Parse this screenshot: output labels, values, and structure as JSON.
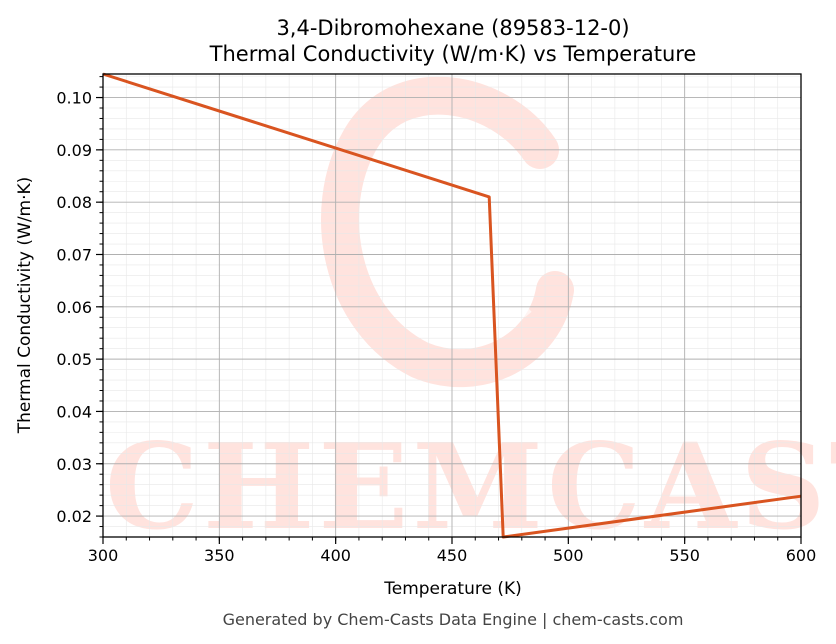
{
  "chart_data": {
    "type": "line",
    "title": "3,4-Dibromohexane (89583-12-0)",
    "subtitle": "Thermal Conductivity (W/m·K) vs Temperature",
    "xlabel": "Temperature (K)",
    "ylabel": "Thermal Conductivity (W/m·K)",
    "xlim": [
      300,
      600
    ],
    "ylim": [
      0.016,
      0.1045
    ],
    "x_ticks": [
      300,
      350,
      400,
      450,
      500,
      550,
      600
    ],
    "y_ticks": [
      0.02,
      0.03,
      0.04,
      0.05,
      0.06,
      0.07,
      0.08,
      0.09,
      0.1
    ],
    "grid": true,
    "series": [
      {
        "color": "#d95420",
        "x": [
          300,
          466,
          472,
          600
        ],
        "y": [
          0.1045,
          0.081,
          0.016,
          0.0238
        ]
      }
    ]
  },
  "watermark": {
    "text": "CHEMCASTS",
    "color": "#ffe3de"
  },
  "footer": "Generated by Chem-Casts Data Engine | chem-casts.com"
}
